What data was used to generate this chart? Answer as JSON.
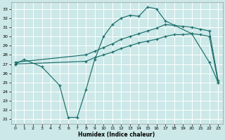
{
  "bg_color": "#cce8e8",
  "grid_color": "#ffffff",
  "line_color": "#1a6e6a",
  "xlabel": "Humidex (Indice chaleur)",
  "xlim": [
    -0.5,
    23.5
  ],
  "ylim": [
    20.5,
    33.7
  ],
  "yticks": [
    21,
    22,
    23,
    24,
    25,
    26,
    27,
    28,
    29,
    30,
    31,
    32,
    33
  ],
  "xticks": [
    0,
    1,
    2,
    3,
    4,
    5,
    6,
    7,
    8,
    9,
    10,
    11,
    12,
    13,
    14,
    15,
    16,
    17,
    18,
    19,
    20,
    21,
    22,
    23
  ],
  "line1_x": [
    0,
    1,
    3,
    5,
    6,
    7,
    8,
    9,
    10,
    11,
    12,
    13,
    14,
    15,
    16,
    17,
    20,
    22,
    23
  ],
  "line1_y": [
    27.0,
    27.5,
    26.7,
    24.7,
    21.2,
    21.2,
    24.2,
    27.5,
    30.0,
    31.3,
    32.0,
    32.3,
    32.2,
    33.2,
    33.0,
    31.7,
    30.3,
    27.2,
    25.0
  ],
  "line2_x": [
    0,
    8,
    9,
    10,
    11,
    12,
    13,
    14,
    15,
    16,
    17,
    18,
    19,
    20,
    21,
    22,
    23
  ],
  "line2_y": [
    27.0,
    27.3,
    27.7,
    28.0,
    28.3,
    28.7,
    29.0,
    29.3,
    29.5,
    29.7,
    30.0,
    30.2,
    30.2,
    30.3,
    30.2,
    30.0,
    25.0
  ],
  "line3_x": [
    0,
    8,
    9,
    10,
    11,
    12,
    13,
    14,
    15,
    16,
    17,
    18,
    19,
    20,
    21,
    22,
    23
  ],
  "line3_y": [
    27.2,
    28.0,
    28.4,
    28.8,
    29.2,
    29.7,
    30.0,
    30.3,
    30.6,
    30.9,
    31.3,
    31.2,
    31.1,
    31.0,
    30.8,
    30.6,
    25.2
  ]
}
